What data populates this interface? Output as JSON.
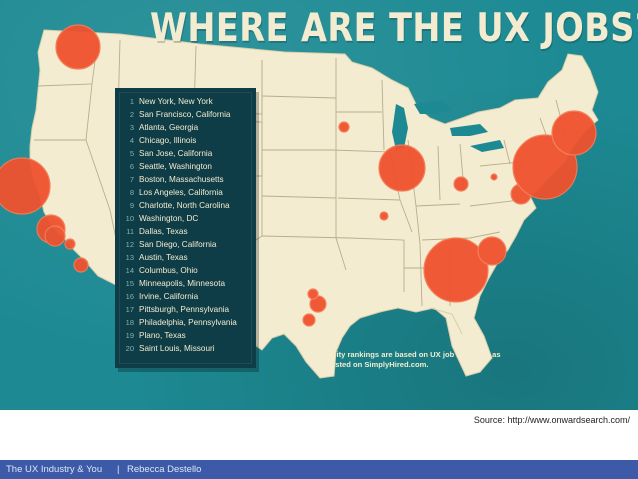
{
  "title": "WHERE ARE THE UX JOBS?",
  "colors": {
    "background_teal": "#1d8a93",
    "land_cream": "#f3ecd0",
    "state_border": "#b9ae8c",
    "bubble_orange": "#f0522e",
    "panel_dark": "#0f3d47",
    "footer_bar": "#3c5aa8"
  },
  "rankings": [
    {
      "rank": "1",
      "city": "New York, New York"
    },
    {
      "rank": "2",
      "city": "San Francisco, California"
    },
    {
      "rank": "3",
      "city": "Atlanta, Georgia"
    },
    {
      "rank": "4",
      "city": "Chicago, Illinois"
    },
    {
      "rank": "5",
      "city": "San Jose, California"
    },
    {
      "rank": "6",
      "city": "Seattle, Washington"
    },
    {
      "rank": "7",
      "city": "Boston, Massachusetts"
    },
    {
      "rank": "8",
      "city": "Los Angeles, California"
    },
    {
      "rank": "9",
      "city": "Charlotte, North Carolina"
    },
    {
      "rank": "10",
      "city": "Washington, DC"
    },
    {
      "rank": "11",
      "city": "Dallas, Texas"
    },
    {
      "rank": "12",
      "city": "San Diego, California"
    },
    {
      "rank": "13",
      "city": "Austin, Texas"
    },
    {
      "rank": "14",
      "city": "Columbus, Ohio"
    },
    {
      "rank": "15",
      "city": "Minneapolis, Minnesota"
    },
    {
      "rank": "16",
      "city": "Irvine, California"
    },
    {
      "rank": "17",
      "city": "Pittsburgh, Pennsylvania"
    },
    {
      "rank": "18",
      "city": "Philadelphia, Pennsylvania"
    },
    {
      "rank": "19",
      "city": "Plano, Texas"
    },
    {
      "rank": "20",
      "city": "Saint Louis, Missouri"
    }
  ],
  "footnote": "City rankings are based on UX job openings as listed on SimplyHired.com.",
  "source": "Source: http://www.onwardsearch.com/",
  "footer": {
    "course": "The UX Industry & You",
    "separator": "|",
    "author": "Rebecca Destello"
  }
}
